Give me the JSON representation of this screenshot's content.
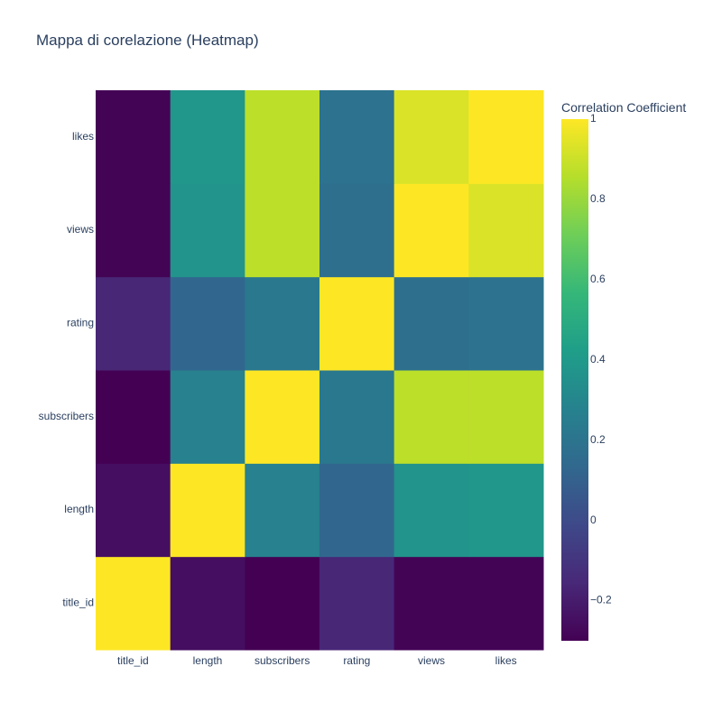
{
  "chart_data": {
    "type": "heatmap",
    "title": "Mappa di corelazione (Heatmap)",
    "x_categories": [
      "title_id",
      "length",
      "subscribers",
      "rating",
      "views",
      "likes"
    ],
    "y_categories": [
      "title_id",
      "length",
      "subscribers",
      "rating",
      "views",
      "likes"
    ],
    "z": [
      [
        1.0,
        -0.25,
        -0.3,
        -0.16,
        -0.29,
        -0.29
      ],
      [
        -0.25,
        1.0,
        0.27,
        0.13,
        0.37,
        0.38
      ],
      [
        -0.3,
        0.27,
        1.0,
        0.22,
        0.87,
        0.87
      ],
      [
        -0.16,
        0.13,
        0.22,
        1.0,
        0.17,
        0.19
      ],
      [
        -0.29,
        0.37,
        0.87,
        0.17,
        1.0,
        0.93
      ],
      [
        -0.29,
        0.38,
        0.87,
        0.19,
        0.93,
        1.0
      ]
    ],
    "colorscale": "Viridis",
    "colorscale_stops": [
      "#440154",
      "#482878",
      "#3e4989",
      "#31688e",
      "#26828e",
      "#1f9e89",
      "#35b779",
      "#6ece58",
      "#b5de2b",
      "#fde725"
    ],
    "zmin": -0.3,
    "zmax": 1,
    "colorbar": {
      "title": "Correlation Coefficient",
      "ticks": [
        -0.2,
        0,
        0.2,
        0.4,
        0.6,
        0.8,
        1
      ],
      "tick_labels": [
        "−0.2",
        "0",
        "0.2",
        "0.4",
        "0.6",
        "0.8",
        "1"
      ]
    },
    "grid": false
  }
}
